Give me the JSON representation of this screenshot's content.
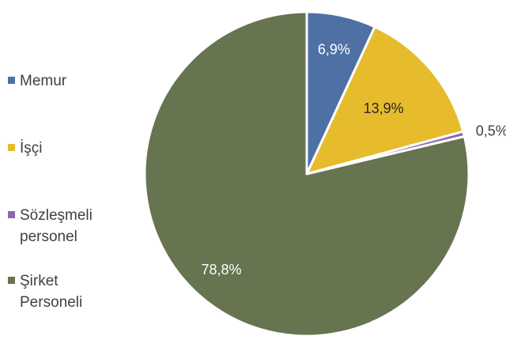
{
  "chart_data": {
    "type": "pie",
    "categories": [
      "Memur",
      "İşçi",
      "Sözleşmeli personel",
      "Şirket Personeli"
    ],
    "values": [
      6.9,
      13.9,
      0.5,
      78.8
    ],
    "data_labels": [
      "6,9%",
      "13,9%",
      "0,5%",
      "78,8%"
    ],
    "colors": [
      "#4e70a5",
      "#e6bc2c",
      "#8b67b0",
      "#66744f"
    ],
    "legend_labels": [
      "Memur",
      "İşçi",
      "Sözleşmeli\npersonel",
      "Şirket\nPersoneli"
    ],
    "legend_position": "left",
    "start_angle_deg": 0,
    "direction": "clockwise",
    "title": ""
  }
}
